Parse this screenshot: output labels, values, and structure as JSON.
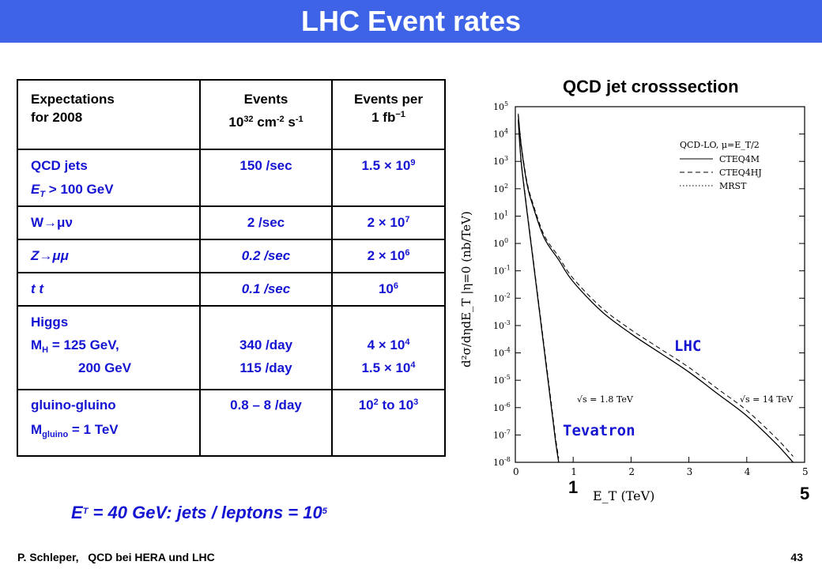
{
  "slide": {
    "title": "LHC Event rates",
    "summary": {
      "prefix": "E",
      "sup": "T",
      "main": " = 40 GeV:   jets / leptons = 10",
      "exp": "5"
    },
    "footer": {
      "left": "P. Schleper,   QCD bei HERA und LHC",
      "page": "43"
    }
  },
  "table": {
    "header": {
      "c1_l1": "Expectations",
      "c1_l2": "for 2008",
      "c2_l1": "Events",
      "c2_base": "10",
      "c2_exp1": "32",
      "c2_mid": " cm",
      "c2_exp2": "-2",
      "c2_s": " s",
      "c2_exp3": "-1",
      "c3_l1": "Events per",
      "c3_l2": "1 fb",
      "c3_exp": "−1"
    },
    "qcd": {
      "l1": "QCD jets",
      "et_e": "E",
      "et_sub": "T",
      "et_rest": " > 100 GeV",
      "rate": "150 /sec",
      "count_base": "1.5 × 10",
      "count_exp": "9"
    },
    "w": {
      "label": "W→μν",
      "rate": "2 /sec",
      "count_base": "2 × 10",
      "count_exp": "7"
    },
    "z": {
      "label": "Z→μμ",
      "rate": "0.2 /sec",
      "count_base": "2 × 10",
      "count_exp": "6"
    },
    "tt": {
      "label": "t t",
      "rate": "0.1 /sec",
      "count_base": "10",
      "count_exp": "6"
    },
    "higgs": {
      "l1": "Higgs",
      "mh": "M",
      "mh_sub": "H",
      "mh_rest": " = 125 GeV,",
      "l3": "200 GeV",
      "rate1": "340 /day",
      "rate2": "115 /day",
      "count1_base": "4 × 10",
      "count1_exp": "4",
      "count2_base": "1.5 × 10",
      "count2_exp": "4"
    },
    "gluino": {
      "l1": "gluino-gluino",
      "m": "M",
      "m_sub": "gluino",
      "m_rest": " = 1 TeV",
      "rate": "0.8 – 8 /day",
      "count_base1": "10",
      "count_exp1": "2",
      "count_mid": " to 10",
      "count_exp2": "3"
    }
  },
  "plot": {
    "heading": "QCD jet crosssection",
    "lhc_label": "LHC",
    "tevatron_label": "Tevatron",
    "marker_1": "1",
    "marker_5": "5",
    "colors": {
      "accent": "#1414d2",
      "title_bar": "#3f63e6"
    }
  },
  "chart_data": {
    "type": "line",
    "title": "QCD jet crosssection",
    "xlabel": "E_T  (TeV)",
    "ylabel": "d²σ/dηdE_T |η=0  (nb/TeV)",
    "xlim": [
      0,
      5
    ],
    "ylim_log10": [
      -8,
      5
    ],
    "x_ticks": [
      "0",
      "1",
      "2",
      "3",
      "4",
      "5"
    ],
    "y_ticks": [
      "10^5",
      "10^4",
      "10^3",
      "10^2",
      "10^1",
      "10^0",
      "10^-1",
      "10^-2",
      "10^-3",
      "10^-4",
      "10^-5",
      "10^-6",
      "10^-7",
      "10^-8"
    ],
    "legend": {
      "title": "QCD-LO, μ=E_T/2",
      "entries": [
        "CTEQ4M",
        "CTEQ4HJ",
        "MRST"
      ],
      "styles": [
        "solid",
        "dashed",
        "dotted"
      ],
      "position": "top-right"
    },
    "annotations": [
      "√s = 1.8 TeV",
      "√s = 14 TeV"
    ],
    "series": [
      {
        "name": "Tevatron √s = 1.8 TeV",
        "x": [
          0.05,
          0.1,
          0.2,
          0.3,
          0.4,
          0.5,
          0.6,
          0.7,
          0.75
        ],
        "log10_y": [
          4.5,
          3.0,
          1.2,
          -0.5,
          -2.2,
          -3.9,
          -5.6,
          -7.3,
          -8.0
        ]
      },
      {
        "name": "LHC √s = 14 TeV",
        "x": [
          0.05,
          0.1,
          0.2,
          0.3,
          0.5,
          0.75,
          1.0,
          1.5,
          2.0,
          2.5,
          3.0,
          3.5,
          4.0,
          4.5,
          4.8
        ],
        "log10_y": [
          4.7,
          3.6,
          2.2,
          1.4,
          0.2,
          -0.6,
          -1.4,
          -2.5,
          -3.3,
          -4.0,
          -4.7,
          -5.5,
          -6.3,
          -7.3,
          -8.0
        ]
      }
    ]
  }
}
